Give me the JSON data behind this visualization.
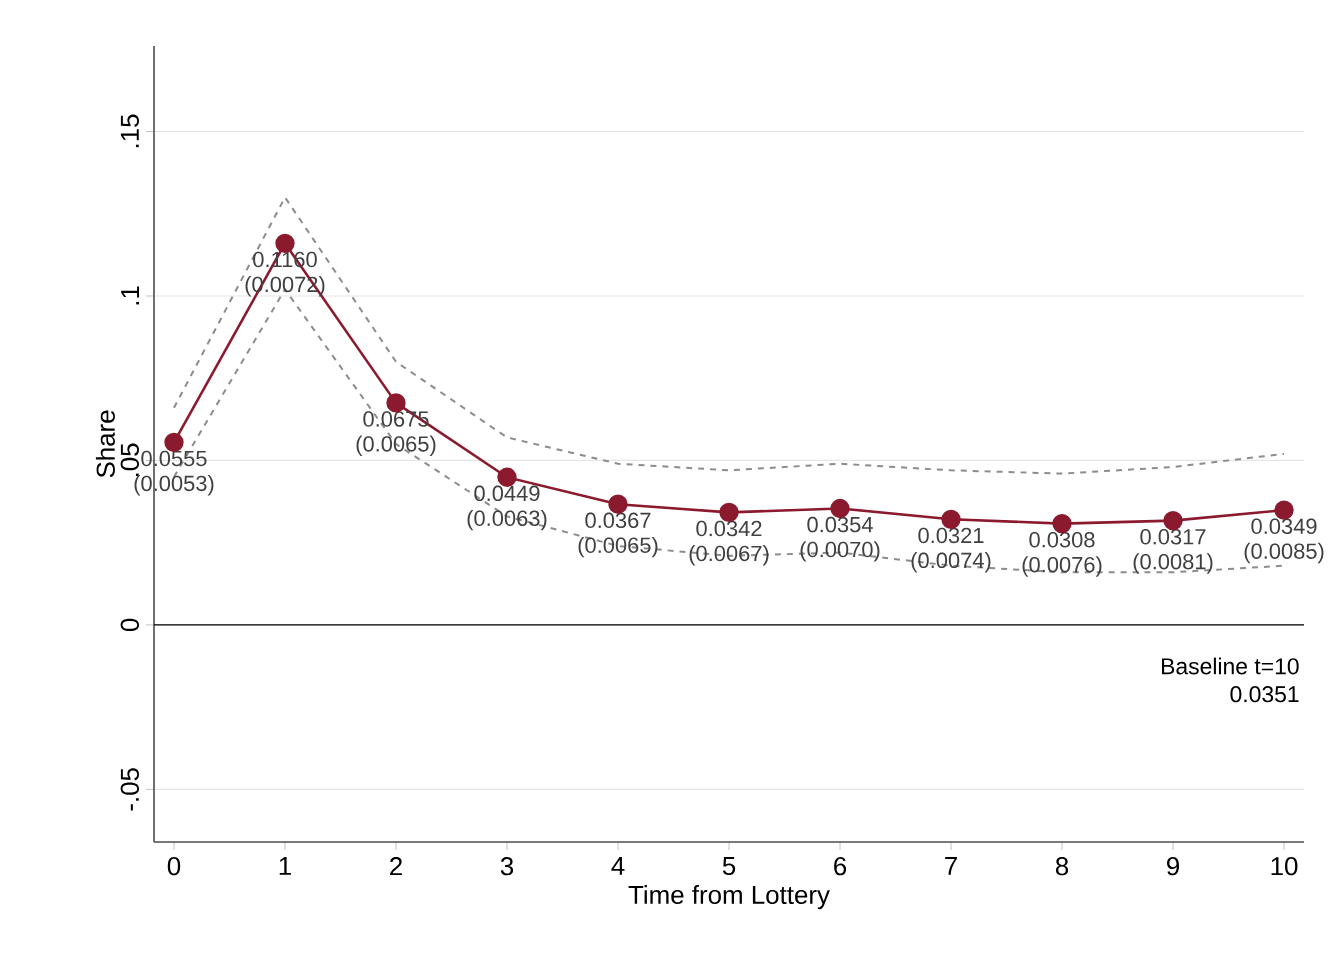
{
  "chart_data": {
    "type": "line",
    "xlabel": "Time from Lottery",
    "ylabel": "Share",
    "x": [
      0,
      1,
      2,
      3,
      4,
      5,
      6,
      7,
      8,
      9,
      10
    ],
    "series": [
      {
        "type": "line",
        "color": "#8c8c8c",
        "line_style": "dashed",
        "marker": "none",
        "values": [
          0.045,
          0.102,
          0.055,
          0.033,
          0.024,
          0.021,
          0.022,
          0.018,
          0.016,
          0.016,
          0.018
        ]
      },
      {
        "type": "line",
        "color": "#8c8c8c",
        "line_style": "dashed",
        "marker": "none",
        "values": [
          0.066,
          0.13,
          0.08,
          0.057,
          0.049,
          0.047,
          0.049,
          0.047,
          0.046,
          0.048,
          0.052
        ]
      },
      {
        "color": "#8b1a2e",
        "values": [
          0.0555,
          0.116,
          0.0675,
          0.0449,
          0.0367,
          0.0342,
          0.0354,
          0.0321,
          0.0308,
          0.0317,
          0.0349
        ],
        "value_labels": [
          "0.0555 (0.0053)",
          "0.1160 (0.0072)",
          "0.0675 (0.0065)",
          "0.0449 (0.0063)",
          "0.0367 (0.0065)",
          "0.0342 (0.0067)",
          "0.0354 (0.0070)",
          "0.0321 (0.0074)",
          "0.0308 (0.0076)",
          "0.0317 (0.0081)",
          "0.0349 (0.0085)"
        ]
      }
    ],
    "xlim": [
      -0.18,
      10.18
    ],
    "ylim": [
      -0.066,
      0.176
    ],
    "xticks": [
      0,
      1,
      2,
      3,
      4,
      5,
      6,
      7,
      8,
      9,
      10
    ],
    "yticks": [
      {
        "value": -0.05,
        "label": "-.05"
      },
      0,
      {
        "value": 0.05,
        "label": ".05"
      },
      {
        "value": 0.1,
        "label": ".1"
      },
      {
        "value": 0.15,
        "label": ".15"
      }
    ],
    "ref_lines": [
      {
        "axis": "y",
        "value": 0,
        "color": "#000000"
      }
    ],
    "annotations": [
      "Baseline t=10",
      "0.0351"
    ],
    "grid": "y",
    "marker": "circle",
    "line_style": "solid"
  }
}
